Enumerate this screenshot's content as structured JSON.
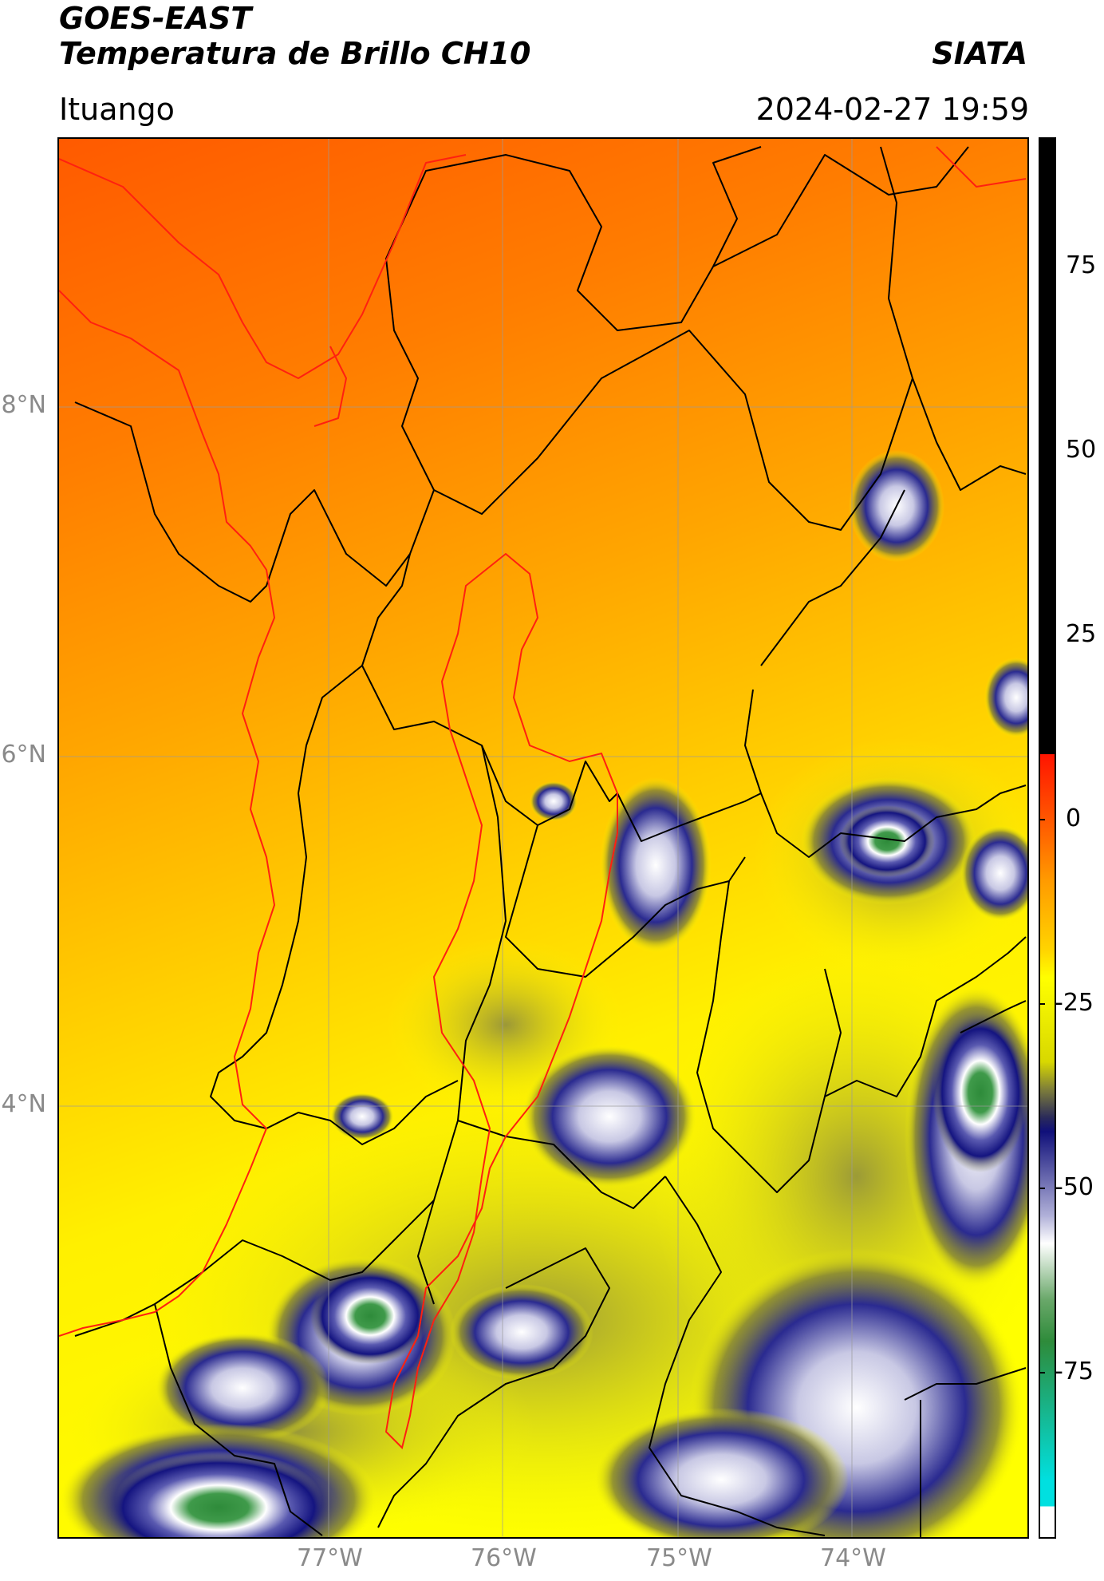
{
  "header": {
    "satellite": "GOES-EAST",
    "product": "Temperatura de Brillo CH10",
    "agency": "SIATA",
    "region": "Ituango",
    "timestamp": "2024-02-27 19:59"
  },
  "map": {
    "lat_ticks": [
      "8°N",
      "6°N",
      "4°N"
    ],
    "lon_ticks": [
      "77°W",
      "76°W",
      "75°W",
      "74°W"
    ]
  },
  "colorbar": {
    "ticks": [
      "75",
      "50",
      "25",
      "0",
      "-25",
      "-50",
      "-75"
    ],
    "colors": {
      "black": "#000000",
      "red": "#ff1400",
      "orange": "#ff9a00",
      "yellow": "#ffff00",
      "olive": "#7d7d3a",
      "navy": "#10107a",
      "white": "#ffffff",
      "green": "#2e8b3a",
      "cyan": "#00e0e0"
    }
  }
}
